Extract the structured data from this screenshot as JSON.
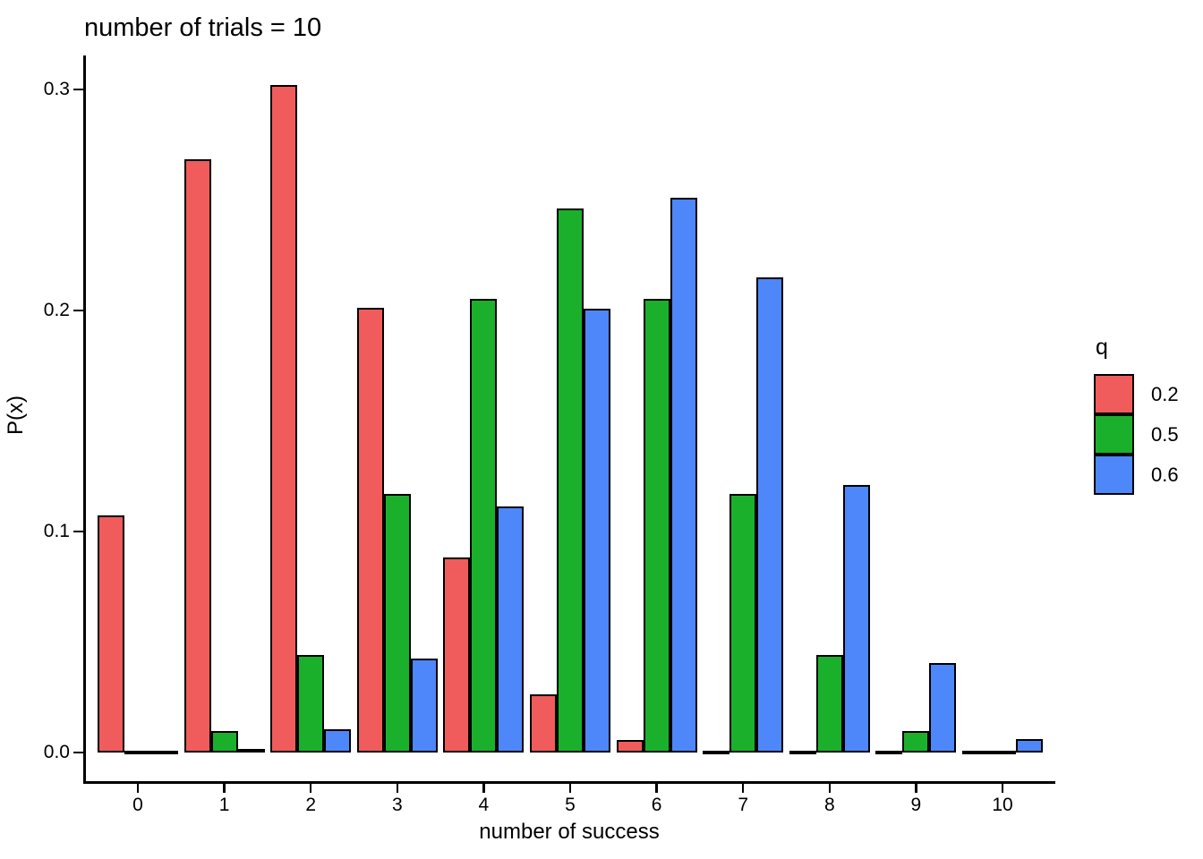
{
  "chart_data": {
    "type": "bar",
    "title": "number of trials = 10",
    "xlabel": "number of success",
    "ylabel": "P(x)",
    "legend_title": "q",
    "legend_position": "right",
    "grid": false,
    "categories": [
      0,
      1,
      2,
      3,
      4,
      5,
      6,
      7,
      8,
      9,
      10
    ],
    "series": [
      {
        "name": "0.2",
        "color": "#F05C5B",
        "values": [
          0.10737,
          0.26844,
          0.30199,
          0.20133,
          0.08808,
          0.02642,
          0.00551,
          0.00079,
          7e-05,
          4.2e-06,
          1e-07
        ]
      },
      {
        "name": "0.5",
        "color": "#1BB02C",
        "values": [
          0.00098,
          0.00977,
          0.04395,
          0.11719,
          0.20508,
          0.24609,
          0.20508,
          0.11719,
          0.04395,
          0.00977,
          0.00098
        ]
      },
      {
        "name": "0.6",
        "color": "#4E87F9",
        "values": [
          0.0001,
          0.00157,
          0.01062,
          0.04247,
          0.11148,
          0.20066,
          0.25082,
          0.21499,
          0.12093,
          0.04031,
          0.00605
        ]
      }
    ],
    "ylim": [
      0,
      0.3158
    ],
    "yticks": [
      0.0,
      0.1,
      0.2,
      0.3
    ],
    "ytick_labels": [
      "0.0",
      "0.1",
      "0.2",
      "0.3"
    ],
    "axis_color": "#000000",
    "background_color": "#ffffff"
  }
}
